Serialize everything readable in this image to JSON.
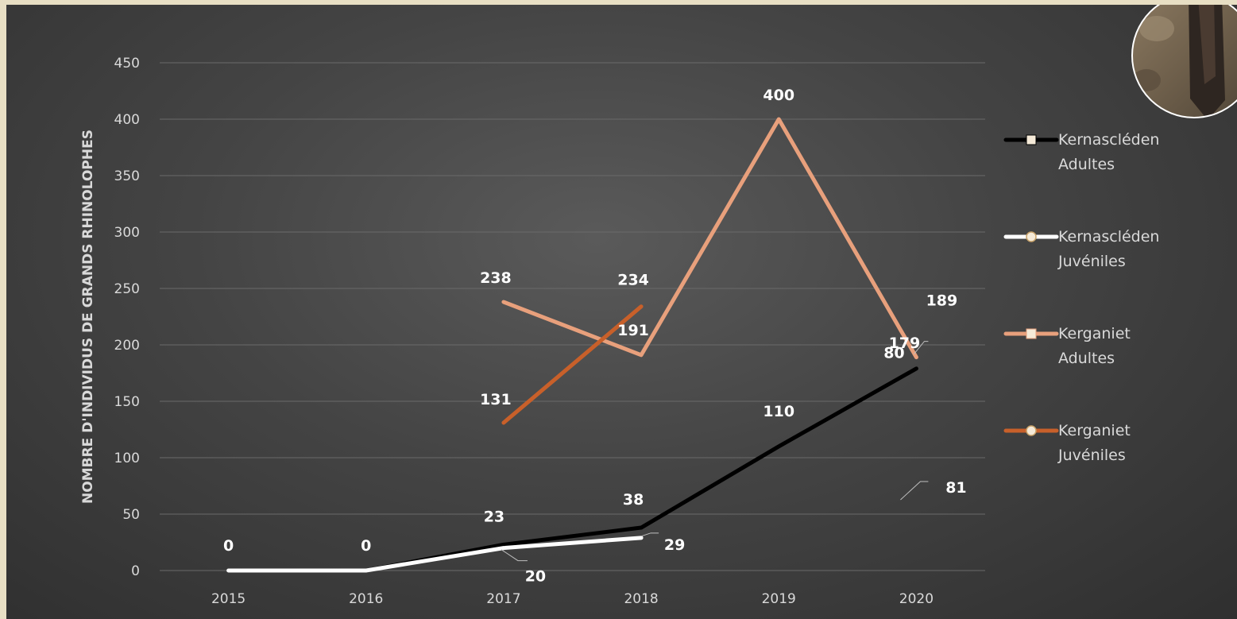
{
  "chart_data": {
    "type": "line",
    "categories": [
      "2015",
      "2016",
      "2017",
      "2018",
      "2019",
      "2020"
    ],
    "ylabel": "NOMBRE D'INDIVIDUS DE GRANDS RHINOLOPHES",
    "xlabel": "",
    "title": "",
    "ylim": [
      0,
      450
    ],
    "yticks": [
      "0",
      "50",
      "100",
      "150",
      "200",
      "250",
      "300",
      "350",
      "400",
      "450"
    ],
    "grid": true,
    "legend_position": "right",
    "series": [
      {
        "name_lines": [
          "Kernascléden",
          "Adultes"
        ],
        "color": "#000000",
        "marker": "square",
        "values": [
          0,
          0,
          23,
          38,
          110,
          179
        ],
        "labels": [
          "0",
          "0",
          "23",
          "38",
          "110",
          "179"
        ]
      },
      {
        "name_lines": [
          "Kernascléden",
          "Juvéniles"
        ],
        "color": "#ffffff",
        "marker": "circle",
        "values": [
          0,
          0,
          20,
          29,
          null,
          81
        ],
        "labels": [
          "",
          "",
          "20",
          "29",
          "",
          "81"
        ]
      },
      {
        "name_lines": [
          "Kerganiet",
          "Adultes"
        ],
        "color": "#e8a07c",
        "marker": "square",
        "values": [
          null,
          null,
          238,
          191,
          400,
          189
        ],
        "labels": [
          "",
          "",
          "238",
          "191",
          "400",
          "189"
        ]
      },
      {
        "name_lines": [
          "Kerganiet",
          "Juvéniles"
        ],
        "color": "#c8602a",
        "marker": "circle",
        "values": [
          null,
          null,
          131,
          234,
          null,
          80
        ],
        "labels": [
          "",
          "",
          "131",
          "234",
          "",
          "80"
        ]
      }
    ]
  }
}
